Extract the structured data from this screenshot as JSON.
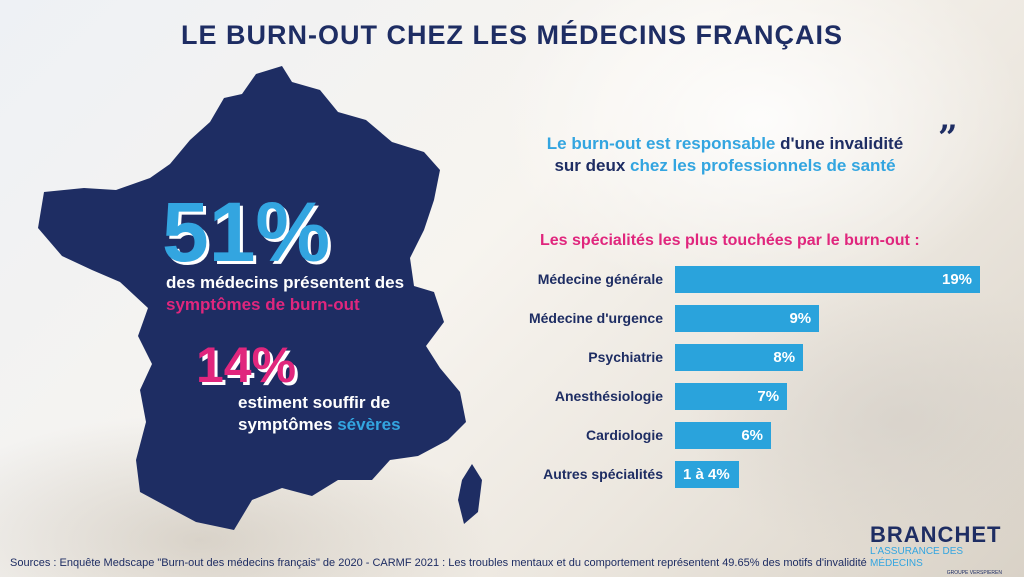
{
  "title": "LE BURN-OUT CHEZ LES MÉDECINS FRANÇAIS",
  "stat1": {
    "value": "51%",
    "line1": "des médecins présentent des",
    "line2": "symptômes de burn-out"
  },
  "stat2": {
    "value": "14%",
    "line1": "estiment souffir de",
    "line2_a": "symptômes ",
    "line2_b": "sévères"
  },
  "quote": {
    "part1": "Le burn-out est responsable",
    "part2": " d'une invalidité",
    "part3": "sur deux",
    "part4": " chez les professionnels de santé"
  },
  "chart_data": {
    "type": "bar",
    "orientation": "horizontal",
    "title": "Les spécialités les plus touchées par le burn-out :",
    "categories": [
      "Médecine générale",
      "Médecine d'urgence",
      "Psychiatrie",
      "Anesthésiologie",
      "Cardiologie",
      "Autres spécialités"
    ],
    "values": [
      19,
      9,
      8,
      7,
      6,
      4
    ],
    "labels": [
      "19%",
      "9%",
      "8%",
      "7%",
      "6%",
      "1 à 4%"
    ],
    "bar_color": "#2aa3dc"
  },
  "sources": "Sources : Enquête Medscape \"Burn-out des médecins français\" de 2020 -  CARMF 2021 : Les troubles mentaux et du comportement représentent 49.65% des motifs d'invalidité",
  "logo": {
    "main": "BRANCHET",
    "sub": "L'ASSURANCE DES MÉDECINS",
    "sub2": "GROUPE VERSPIEREN"
  },
  "colors": {
    "navy": "#1e2d63",
    "blue": "#33a5e0",
    "pink": "#e0267d"
  }
}
